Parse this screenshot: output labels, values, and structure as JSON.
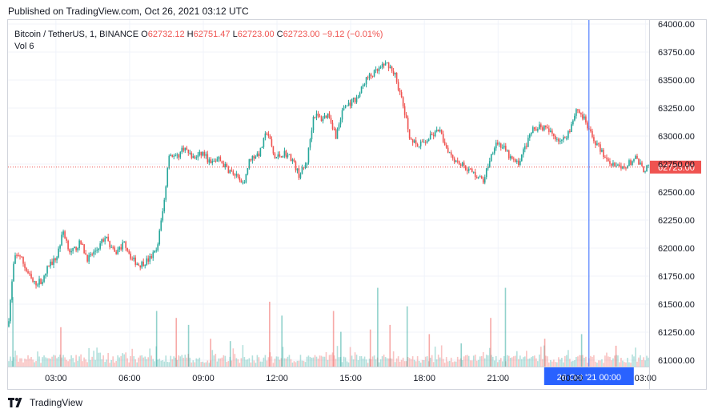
{
  "header": {
    "published": "Published on TradingView.com, Oct 26, 2021 03:12 UTC"
  },
  "legend": {
    "symbol": "Bitcoin / TetherUS, 1, BINANCE",
    "o_label": "O",
    "o_value": "62732.12",
    "h_label": "H",
    "h_value": "62751.47",
    "l_label": "L",
    "l_value": "62723.00",
    "c_label": "C",
    "c_value": "62723.00",
    "change": "−9.12 (−0.01%)",
    "vol_label": "Vol",
    "vol_value": "6"
  },
  "footer": {
    "brand": "TradingView",
    "logo_icon": "tradingview-logo-icon"
  },
  "colors": {
    "up": "#26a69a",
    "down": "#ef5350",
    "crosshair": "#2962ff",
    "grid": "#f0f3fa"
  },
  "chart_data": {
    "type": "candlestick",
    "title": "Bitcoin / TetherUS, 1, BINANCE",
    "ylim": [
      60950,
      64030
    ],
    "y_ticks": [
      "64000.00",
      "63750.00",
      "63500.00",
      "63250.00",
      "63000.00",
      "62750.00",
      "62500.00",
      "62250.00",
      "62000.00",
      "61750.00",
      "61500.00",
      "61250.00",
      "61000.00"
    ],
    "x_ticks": [
      "03:00",
      "06:00",
      "09:00",
      "12:00",
      "15:00",
      "18:00",
      "21:00",
      "00:00",
      "03:00"
    ],
    "x_tick_hours": [
      3,
      6,
      9,
      12,
      15,
      18,
      21,
      24,
      27
    ],
    "x_range_hours": [
      1.05,
      27.15
    ],
    "last_price": "62723.00",
    "last_price_value": 62723,
    "crosshair_hour": 24.7,
    "crosshair_label": "26 Oct '21   00:00",
    "price_path": [
      [
        1.05,
        61300
      ],
      [
        1.3,
        61900
      ],
      [
        1.5,
        61950
      ],
      [
        1.8,
        61800
      ],
      [
        2.1,
        61680
      ],
      [
        2.5,
        61720
      ],
      [
        2.7,
        61850
      ],
      [
        3.0,
        61900
      ],
      [
        3.3,
        62150
      ],
      [
        3.6,
        61950
      ],
      [
        4.0,
        62050
      ],
      [
        4.3,
        61900
      ],
      [
        4.7,
        62000
      ],
      [
        5.0,
        62100
      ],
      [
        5.4,
        61950
      ],
      [
        5.8,
        62050
      ],
      [
        6.1,
        61900
      ],
      [
        6.4,
        61850
      ],
      [
        6.8,
        61900
      ],
      [
        7.1,
        61980
      ],
      [
        7.4,
        62400
      ],
      [
        7.6,
        62850
      ],
      [
        7.9,
        62800
      ],
      [
        8.2,
        62900
      ],
      [
        8.6,
        62800
      ],
      [
        9.0,
        62850
      ],
      [
        9.3,
        62750
      ],
      [
        9.6,
        62800
      ],
      [
        10.0,
        62700
      ],
      [
        10.3,
        62650
      ],
      [
        10.6,
        62550
      ],
      [
        10.9,
        62800
      ],
      [
        11.3,
        62850
      ],
      [
        11.6,
        63050
      ],
      [
        11.9,
        62800
      ],
      [
        12.3,
        62850
      ],
      [
        12.6,
        62800
      ],
      [
        12.9,
        62650
      ],
      [
        13.2,
        62750
      ],
      [
        13.5,
        63200
      ],
      [
        13.8,
        63150
      ],
      [
        14.1,
        63200
      ],
      [
        14.4,
        63000
      ],
      [
        14.7,
        63250
      ],
      [
        15.0,
        63300
      ],
      [
        15.3,
        63350
      ],
      [
        15.6,
        63500
      ],
      [
        15.9,
        63550
      ],
      [
        16.2,
        63600
      ],
      [
        16.5,
        63650
      ],
      [
        16.8,
        63550
      ],
      [
        17.1,
        63300
      ],
      [
        17.4,
        63000
      ],
      [
        17.7,
        62900
      ],
      [
        18.0,
        62950
      ],
      [
        18.3,
        63000
      ],
      [
        18.6,
        63050
      ],
      [
        18.9,
        62900
      ],
      [
        19.2,
        62800
      ],
      [
        19.5,
        62750
      ],
      [
        19.8,
        62700
      ],
      [
        20.1,
        62650
      ],
      [
        20.4,
        62600
      ],
      [
        20.6,
        62750
      ],
      [
        20.9,
        62950
      ],
      [
        21.2,
        62900
      ],
      [
        21.5,
        62800
      ],
      [
        21.8,
        62750
      ],
      [
        22.1,
        62900
      ],
      [
        22.4,
        63050
      ],
      [
        22.7,
        63100
      ],
      [
        23.0,
        63050
      ],
      [
        23.3,
        63000
      ],
      [
        23.6,
        62950
      ],
      [
        23.9,
        63050
      ],
      [
        24.2,
        63250
      ],
      [
        24.5,
        63150
      ],
      [
        24.8,
        63000
      ],
      [
        25.1,
        62900
      ],
      [
        25.4,
        62800
      ],
      [
        25.7,
        62750
      ],
      [
        26.0,
        62700
      ],
      [
        26.3,
        62750
      ],
      [
        26.6,
        62800
      ],
      [
        26.9,
        62700
      ],
      [
        27.15,
        62723
      ]
    ],
    "volume_ylim": [
      0,
      190
    ],
    "volume_spikes": [
      [
        1.25,
        150
      ],
      [
        3.2,
        85
      ],
      [
        7.1,
        120
      ],
      [
        7.9,
        105
      ],
      [
        8.4,
        90
      ],
      [
        9.3,
        60
      ],
      [
        10.1,
        55
      ],
      [
        11.7,
        140
      ],
      [
        12.2,
        110
      ],
      [
        14.3,
        120
      ],
      [
        14.6,
        75
      ],
      [
        15.8,
        80
      ],
      [
        16.1,
        170
      ],
      [
        16.6,
        90
      ],
      [
        17.3,
        130
      ],
      [
        18.2,
        70
      ],
      [
        19.5,
        50
      ],
      [
        20.7,
        105
      ],
      [
        21.3,
        170
      ],
      [
        22.9,
        60
      ],
      [
        24.4,
        70
      ],
      [
        25.8,
        45
      ]
    ]
  }
}
